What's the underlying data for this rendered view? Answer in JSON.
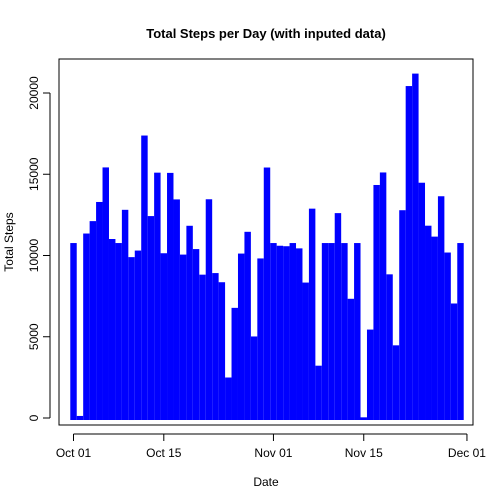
{
  "chart_data": {
    "type": "bar",
    "title": "Total Steps per Day (with inputed data)",
    "xlabel": "Date",
    "ylabel": "Total Steps",
    "bar_color": "#0000ff",
    "axis_color": "#000000",
    "background": "#ffffff",
    "x_start": "2012-10-01",
    "x_ticks": [
      {
        "date": "2012-10-01",
        "label": "Oct 01"
      },
      {
        "date": "2012-10-15",
        "label": "Oct 15"
      },
      {
        "date": "2012-11-01",
        "label": "Nov 01"
      },
      {
        "date": "2012-11-15",
        "label": "Nov 15"
      },
      {
        "date": "2012-12-01",
        "label": "Dec 01"
      }
    ],
    "y_ticks": [
      0,
      5000,
      10000,
      15000,
      20000
    ],
    "ylim": [
      0,
      22000
    ],
    "grid": false,
    "values": [
      10766,
      126,
      11352,
      12116,
      13294,
      15420,
      11015,
      10766,
      12811,
      9900,
      10304,
      17382,
      12426,
      15098,
      10139,
      15084,
      13452,
      10056,
      11829,
      10395,
      8821,
      13460,
      8918,
      8355,
      2492,
      6778,
      10119,
      11458,
      5018,
      9819,
      15414,
      10766,
      10600,
      10571,
      10766,
      10439,
      8334,
      12883,
      3219,
      10766,
      10766,
      12608,
      10765,
      7336,
      10766,
      41,
      5441,
      14339,
      15110,
      8841,
      4472,
      12787,
      20427,
      21194,
      14478,
      11834,
      11162,
      13646,
      10183,
      7047,
      10766
    ]
  }
}
